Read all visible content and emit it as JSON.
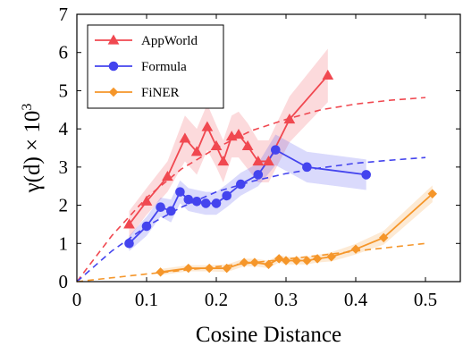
{
  "chart_data": {
    "type": "line",
    "xlabel": "Cosine Distance",
    "ylabel_main": "γ(d) × 10",
    "ylabel_exp": "3",
    "xlim": [
      0,
      0.55
    ],
    "ylim": [
      0,
      7
    ],
    "x_ticks": [
      0,
      0.1,
      0.2,
      0.3,
      0.4,
      0.5
    ],
    "x_tick_labels": [
      "0",
      "0.1",
      "0.2",
      "0.3",
      "0.4",
      "0.5"
    ],
    "y_ticks": [
      0,
      1,
      2,
      3,
      4,
      5,
      6,
      7
    ],
    "y_tick_labels": [
      "0",
      "1",
      "2",
      "3",
      "4",
      "5",
      "6",
      "7"
    ],
    "legend_position": "top-left",
    "series": [
      {
        "name": "AppWorld",
        "color": "#f04850",
        "marker": "triangle",
        "x": [
          0.075,
          0.1,
          0.13,
          0.155,
          0.172,
          0.187,
          0.2,
          0.21,
          0.222,
          0.232,
          0.245,
          0.26,
          0.275,
          0.305,
          0.36
        ],
        "y": [
          1.5,
          2.1,
          2.75,
          3.75,
          3.4,
          4.05,
          3.55,
          3.15,
          3.8,
          3.85,
          3.55,
          3.15,
          3.15,
          4.25,
          5.4
        ],
        "band": [
          0.35,
          0.35,
          0.4,
          0.6,
          0.6,
          0.6,
          0.55,
          0.55,
          0.55,
          0.6,
          0.6,
          0.55,
          0.55,
          0.6,
          0.7
        ],
        "fit_x": [
          0,
          0.05,
          0.1,
          0.15,
          0.2,
          0.25,
          0.3,
          0.35,
          0.4,
          0.45,
          0.5
        ],
        "fit_y": [
          0,
          1.2,
          2.2,
          2.95,
          3.5,
          3.95,
          4.25,
          4.5,
          4.65,
          4.75,
          4.82
        ]
      },
      {
        "name": "Formula",
        "color": "#4444ee",
        "marker": "circle",
        "x": [
          0.075,
          0.1,
          0.12,
          0.135,
          0.148,
          0.16,
          0.172,
          0.185,
          0.2,
          0.215,
          0.235,
          0.26,
          0.285,
          0.33,
          0.415
        ],
        "y": [
          1.0,
          1.45,
          1.95,
          1.85,
          2.35,
          2.15,
          2.1,
          2.05,
          2.05,
          2.25,
          2.55,
          2.8,
          3.45,
          3.0,
          2.8
        ],
        "band": [
          0.2,
          0.25,
          0.25,
          0.3,
          0.3,
          0.3,
          0.3,
          0.3,
          0.3,
          0.3,
          0.3,
          0.3,
          0.4,
          0.4,
          0.4
        ],
        "fit_x": [
          0,
          0.05,
          0.1,
          0.15,
          0.2,
          0.25,
          0.3,
          0.35,
          0.4,
          0.45,
          0.5
        ],
        "fit_y": [
          0,
          0.8,
          1.45,
          1.95,
          2.35,
          2.62,
          2.83,
          2.98,
          3.1,
          3.18,
          3.25
        ]
      },
      {
        "name": "FiNER",
        "color": "#f5962a",
        "marker": "diamond",
        "x": [
          0.12,
          0.16,
          0.19,
          0.215,
          0.24,
          0.255,
          0.275,
          0.29,
          0.3,
          0.315,
          0.33,
          0.345,
          0.365,
          0.4,
          0.44,
          0.51
        ],
        "y": [
          0.25,
          0.35,
          0.35,
          0.35,
          0.5,
          0.5,
          0.45,
          0.6,
          0.55,
          0.55,
          0.55,
          0.6,
          0.65,
          0.85,
          1.15,
          2.3
        ],
        "band": [
          0.08,
          0.08,
          0.08,
          0.1,
          0.1,
          0.1,
          0.1,
          0.1,
          0.1,
          0.1,
          0.1,
          0.1,
          0.12,
          0.14,
          0.18,
          0.22
        ],
        "fit_x": [
          0,
          0.05,
          0.1,
          0.15,
          0.2,
          0.25,
          0.3,
          0.35,
          0.4,
          0.45,
          0.5
        ],
        "fit_y": [
          0,
          0.1,
          0.2,
          0.29,
          0.39,
          0.49,
          0.59,
          0.69,
          0.8,
          0.9,
          1.0
        ]
      }
    ]
  }
}
